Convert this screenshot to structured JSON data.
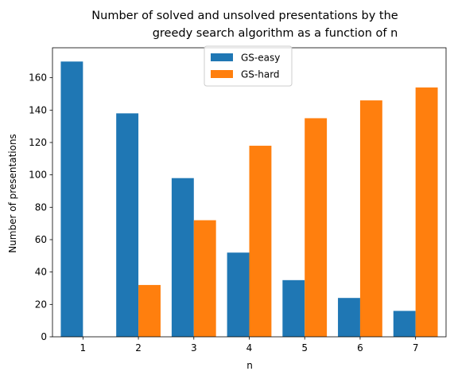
{
  "chart_data": {
    "type": "bar",
    "title": "Number of solved and unsolved presentations by the\n          greedy search algorithm as a function of n",
    "title_lines": [
      "Number of solved and unsolved presentations by the",
      "greedy search algorithm as a function of n"
    ],
    "xlabel": "n",
    "ylabel": "Number of presentations",
    "categories": [
      "1",
      "2",
      "3",
      "4",
      "5",
      "6",
      "7"
    ],
    "series": [
      {
        "name": "GS-easy",
        "color": "#1f77b4",
        "values": [
          170,
          138,
          98,
          52,
          35,
          24,
          16
        ]
      },
      {
        "name": "GS-hard",
        "color": "#ff7f0e",
        "values": [
          0,
          32,
          72,
          118,
          135,
          146,
          154
        ]
      }
    ],
    "ylim": [
      0,
      178.5
    ],
    "yticks": [
      0,
      20,
      40,
      60,
      80,
      100,
      120,
      140,
      160
    ],
    "legend_position": "upper-center",
    "grid": false
  }
}
